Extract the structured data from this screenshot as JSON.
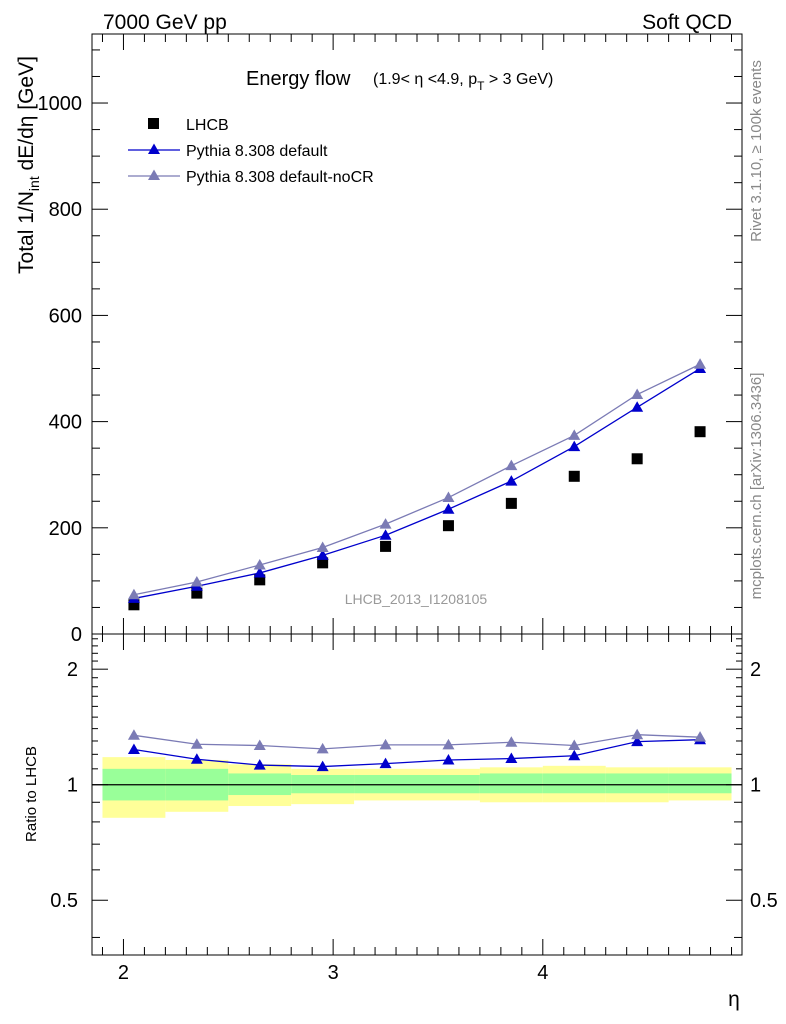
{
  "header": {
    "left": "7000 GeV pp",
    "right": "Soft QCD"
  },
  "side": {
    "rivet": "Rivet 3.1.10, ≥ 100k events",
    "mcplots": "mcplots.cern.ch [arXiv:1306.3436]"
  },
  "chart_data": [
    {
      "type": "scatter",
      "panel": "main",
      "title_main": "Energy flow",
      "title_sub": {
        "a": "(1.9< ",
        "eta": "η",
        "b": " <4.9, p",
        "sub": "T",
        "c": " > 3 GeV)"
      },
      "ylabel": {
        "a": "Total 1/N",
        "sub": "int",
        "b": " dE/dη [GeV]"
      },
      "watermark": "LHCB_2013_I1208105",
      "ylim": [
        0,
        1130
      ],
      "xlim": [
        1.85,
        4.95
      ],
      "y_ticks": [
        0,
        200,
        400,
        600,
        800,
        1000
      ],
      "y_tick_labels": [
        "0",
        "200",
        "400",
        "600",
        "800",
        "1000"
      ],
      "x": [
        2.05,
        2.35,
        2.65,
        2.95,
        3.25,
        3.55,
        3.85,
        4.15,
        4.45,
        4.75
      ],
      "band_edges": [
        1.9,
        2.2,
        2.5,
        2.8,
        3.1,
        3.4,
        3.7,
        4.0,
        4.3,
        4.6,
        4.9
      ],
      "series": [
        {
          "name": "LHCB",
          "marker": "square",
          "color": "#000000",
          "values": [
            55,
            77,
            102,
            134,
            165,
            204,
            246,
            297,
            330,
            381
          ]
        },
        {
          "name": "Pythia 8.308 default",
          "marker": "triangle",
          "color": "#0000cc",
          "values": [
            67,
            90,
            115,
            148,
            186,
            235,
            288,
            353,
            427,
            500
          ]
        },
        {
          "name": "Pythia 8.308 default-noCR",
          "marker": "triangle",
          "color": "#7b7bb5",
          "values": [
            74,
            98,
            130,
            163,
            207,
            257,
            317,
            374,
            451,
            508
          ]
        }
      ]
    },
    {
      "type": "line",
      "panel": "ratio",
      "ylabel": "Ratio to LHCB",
      "xlabel": "η",
      "ylim": [
        0.36,
        2.47
      ],
      "y_ticks": [
        0.5,
        1,
        2
      ],
      "y_tick_labels": [
        "0.5",
        "1",
        "2"
      ],
      "x_ticks": [
        2,
        3,
        4
      ],
      "x_tick_labels": [
        "2",
        "3",
        "4"
      ],
      "x": [
        2.05,
        2.35,
        2.65,
        2.95,
        3.25,
        3.55,
        3.85,
        4.15,
        4.45,
        4.75
      ],
      "band_inner": {
        "lo": [
          0.91,
          0.91,
          0.94,
          0.95,
          0.95,
          0.95,
          0.95,
          0.95,
          0.95,
          0.95
        ],
        "hi": [
          1.1,
          1.1,
          1.07,
          1.06,
          1.06,
          1.06,
          1.07,
          1.07,
          1.07,
          1.07
        ]
      },
      "band_outer": {
        "lo": [
          0.82,
          0.85,
          0.88,
          0.89,
          0.91,
          0.91,
          0.9,
          0.9,
          0.9,
          0.91
        ],
        "hi": [
          1.18,
          1.16,
          1.13,
          1.1,
          1.1,
          1.1,
          1.11,
          1.12,
          1.11,
          1.11
        ]
      },
      "series": [
        {
          "name": "Pythia 8.308 default",
          "color": "#0000cc",
          "values": [
            1.235,
            1.165,
            1.125,
            1.115,
            1.135,
            1.16,
            1.17,
            1.19,
            1.295,
            1.31
          ]
        },
        {
          "name": "Pythia 8.308 default-noCR",
          "color": "#7b7bb5",
          "values": [
            1.345,
            1.275,
            1.265,
            1.24,
            1.27,
            1.27,
            1.29,
            1.265,
            1.35,
            1.33
          ]
        }
      ]
    }
  ]
}
